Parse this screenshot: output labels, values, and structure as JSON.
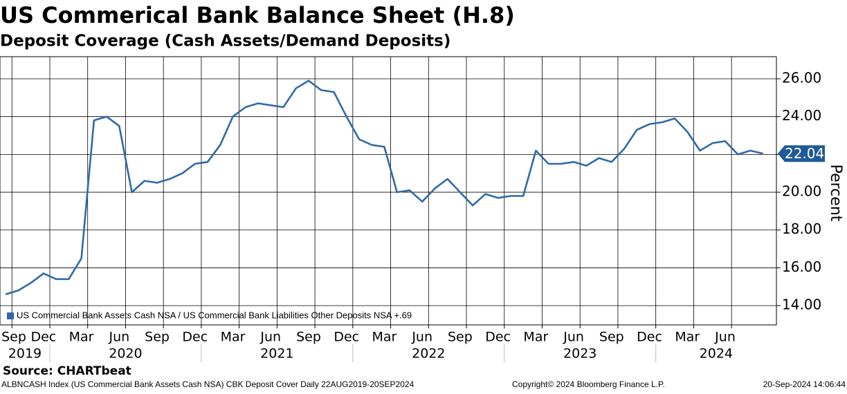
{
  "chart_data": {
    "type": "line",
    "title": "US Commerical Bank Balance Sheet (H.8)",
    "subtitle": "Deposit Coverage (Cash Assets/Demand Deposits)",
    "y_label": "Percent",
    "source": "Source: CHARTbeat",
    "footer_left": "ALBNCASH Index (US Commercial Bank Assets Cash NSA) CBK Deposit Cover  Daily 22AUG2019-20SEP2024",
    "footer_center": "Copyright© 2024 Bloomberg Finance L.P.",
    "footer_right": "20-Sep-2024 14:06:44",
    "x": [
      "2019-09",
      "2019-10",
      "2019-11",
      "2019-12",
      "2020-01",
      "2020-02",
      "2020-03",
      "2020-04",
      "2020-05",
      "2020-06",
      "2020-07",
      "2020-08",
      "2020-09",
      "2020-10",
      "2020-11",
      "2020-12",
      "2021-01",
      "2021-02",
      "2021-03",
      "2021-04",
      "2021-05",
      "2021-06",
      "2021-07",
      "2021-08",
      "2021-09",
      "2021-10",
      "2021-11",
      "2021-12",
      "2022-01",
      "2022-02",
      "2022-03",
      "2022-04",
      "2022-05",
      "2022-06",
      "2022-07",
      "2022-08",
      "2022-09",
      "2022-10",
      "2022-11",
      "2022-12",
      "2023-01",
      "2023-02",
      "2023-03",
      "2023-04",
      "2023-05",
      "2023-06",
      "2023-07",
      "2023-08",
      "2023-09",
      "2023-10",
      "2023-11",
      "2023-12",
      "2024-01",
      "2024-02",
      "2024-03",
      "2024-04",
      "2024-05",
      "2024-06",
      "2024-07",
      "2024-08",
      "2024-09"
    ],
    "series": [
      {
        "name": "US Commercial Bank Assets Cash NSA / US Commercial Bank Liabilities Other Deposits NSA +.69",
        "color": "#2e6aa6",
        "values": [
          14.6,
          14.8,
          15.2,
          15.7,
          15.4,
          15.4,
          16.5,
          23.8,
          24.0,
          23.5,
          20.0,
          20.6,
          20.5,
          20.7,
          21.0,
          21.5,
          21.6,
          22.5,
          24.0,
          24.5,
          24.7,
          24.6,
          24.5,
          25.5,
          25.9,
          25.4,
          25.3,
          24.0,
          22.8,
          22.5,
          22.4,
          20.0,
          20.1,
          19.5,
          20.2,
          20.7,
          20.0,
          19.3,
          19.9,
          19.7,
          19.8,
          19.8,
          22.2,
          21.5,
          21.5,
          21.6,
          21.4,
          21.8,
          21.6,
          22.3,
          23.3,
          23.6,
          23.7,
          23.9,
          23.2,
          22.2,
          22.6,
          22.7,
          22.0,
          22.2,
          22.04
        ]
      }
    ],
    "xlim": [
      "2019-09",
      "2024-09"
    ],
    "xgrid": [
      "2019-10",
      "2020-01",
      "2020-04",
      "2020-07",
      "2020-10",
      "2021-01",
      "2021-04",
      "2021-07",
      "2021-10",
      "2022-01",
      "2022-04",
      "2022-07",
      "2022-10",
      "2023-01",
      "2023-04",
      "2023-07",
      "2023-10",
      "2024-01",
      "2024-04",
      "2024-07"
    ],
    "xticks": [
      {
        "value": "2019-09",
        "label": "Sep"
      },
      {
        "value": "2019-12",
        "label": "Dec"
      },
      {
        "value": "2020-03",
        "label": "Mar"
      },
      {
        "value": "2020-06",
        "label": "Jun"
      },
      {
        "value": "2020-09",
        "label": "Sep"
      },
      {
        "value": "2020-12",
        "label": "Dec"
      },
      {
        "value": "2021-03",
        "label": "Mar"
      },
      {
        "value": "2021-06",
        "label": "Jun"
      },
      {
        "value": "2021-09",
        "label": "Sep"
      },
      {
        "value": "2021-12",
        "label": "Dec"
      },
      {
        "value": "2022-03",
        "label": "Mar"
      },
      {
        "value": "2022-06",
        "label": "Jun"
      },
      {
        "value": "2022-09",
        "label": "Sep"
      },
      {
        "value": "2022-12",
        "label": "Dec"
      },
      {
        "value": "2023-03",
        "label": "Mar"
      },
      {
        "value": "2023-06",
        "label": "Jun"
      },
      {
        "value": "2023-09",
        "label": "Sep"
      },
      {
        "value": "2023-12",
        "label": "Dec"
      },
      {
        "value": "2024-03",
        "label": "Mar"
      },
      {
        "value": "2024-06",
        "label": "Jun"
      }
    ],
    "year_labels": [
      "2019",
      "2020",
      "2021",
      "2022",
      "2023",
      "2024"
    ],
    "ylim": [
      12.98,
      27.17
    ],
    "yticks": [
      {
        "value": 14,
        "label": "14.00"
      },
      {
        "value": 16,
        "label": "16.00"
      },
      {
        "value": 18,
        "label": "18.00"
      },
      {
        "value": 20,
        "label": "20.00"
      },
      {
        "value": 22,
        "label": "22.00"
      },
      {
        "value": 24,
        "label": "24.00"
      },
      {
        "value": 26,
        "label": "26.00"
      }
    ],
    "grid": true,
    "legend": "lower left"
  }
}
